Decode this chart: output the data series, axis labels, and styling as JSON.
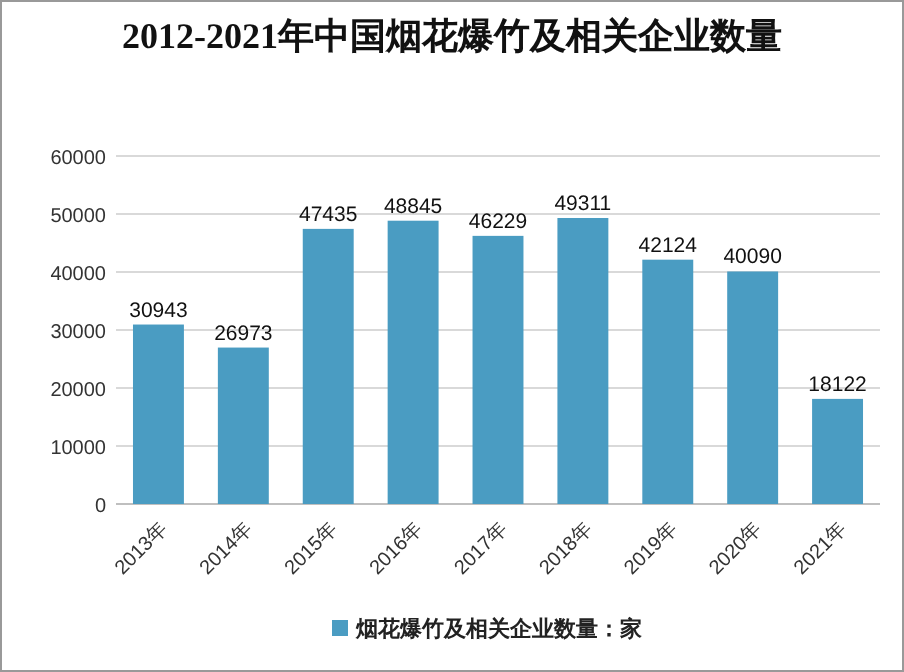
{
  "chart_data": {
    "type": "bar",
    "title": "2012-2021年中国烟花爆竹及相关企业数量",
    "categories": [
      "2013年",
      "2014年",
      "2015年",
      "2016年",
      "2017年",
      "2018年",
      "2019年",
      "2020年",
      "2021年"
    ],
    "series": [
      {
        "name": "烟花爆竹及相关企业数量：家",
        "color": "#4a9cc2",
        "values": [
          30943,
          26973,
          47435,
          48845,
          46229,
          49311,
          42124,
          40090,
          18122
        ]
      }
    ],
    "ylim": [
      0,
      60000
    ],
    "yticks": [
      0,
      10000,
      20000,
      30000,
      40000,
      50000,
      60000
    ],
    "grid": "y",
    "legend": "bottom",
    "data_labels": true
  }
}
